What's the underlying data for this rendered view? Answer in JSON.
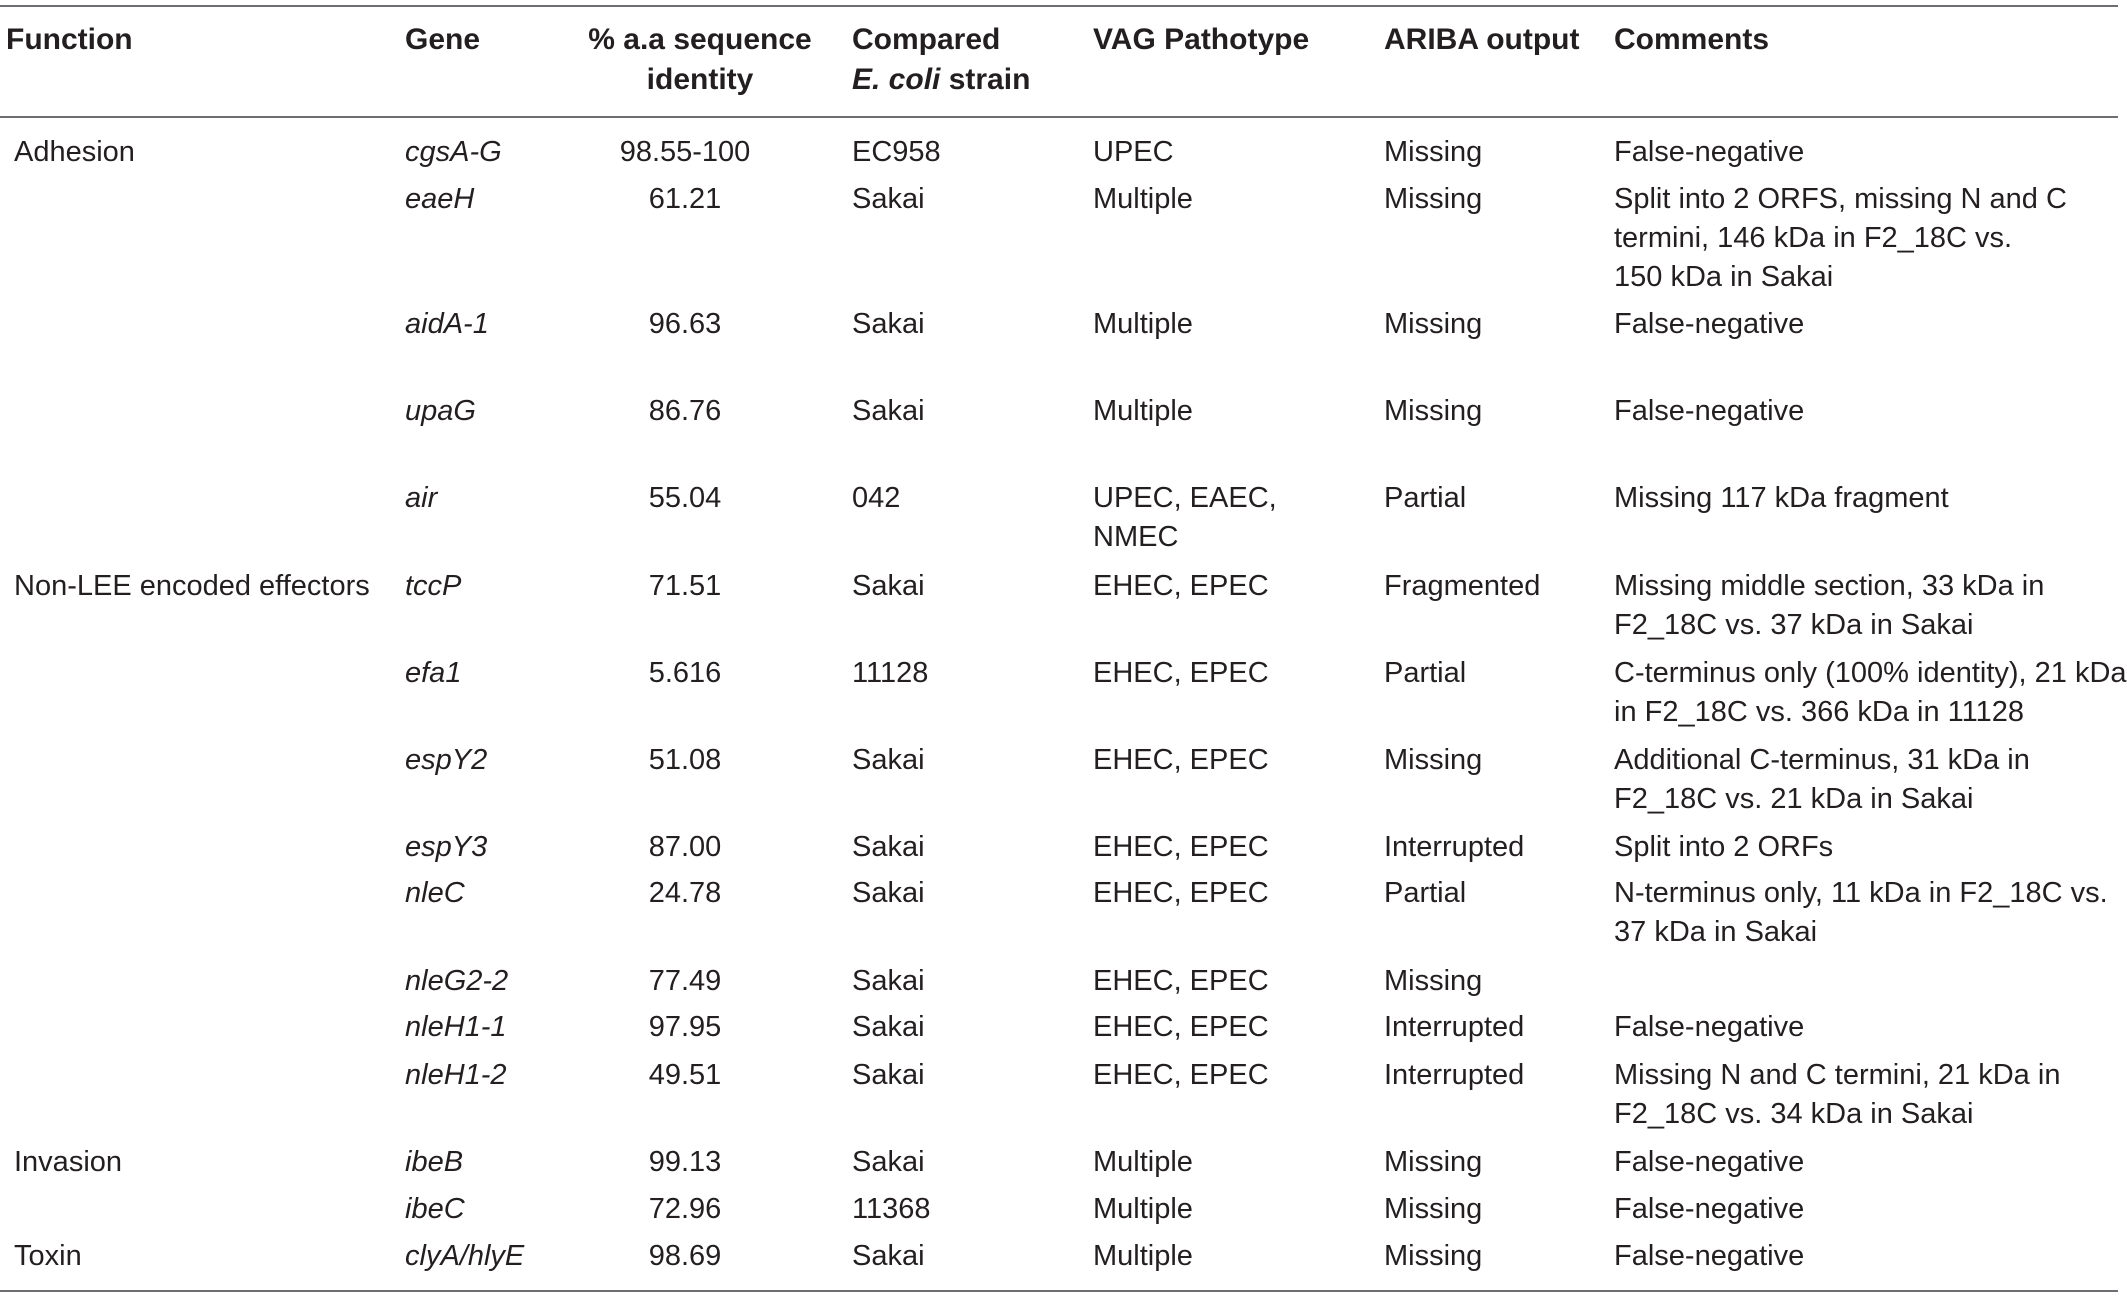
{
  "table": {
    "headers": {
      "function": "Function",
      "gene": "Gene",
      "identity_line1": "% a.a sequence",
      "identity_line2": "identity",
      "strain_line1": "Compared",
      "strain_line2_italic": "E. coli",
      "strain_line2_rest": " strain",
      "pathotype": "VAG Pathotype",
      "ariba": "ARIBA output",
      "comments": "Comments"
    },
    "rows": [
      {
        "function": "Adhesion",
        "gene": "cgsA-G",
        "identity": "98.55-100",
        "strain": "EC958",
        "pathotype": [
          "UPEC"
        ],
        "ariba": "Missing",
        "comments": [
          "False-negative"
        ]
      },
      {
        "function": "",
        "gene": "eaeH",
        "identity": "61.21",
        "strain": "Sakai",
        "pathotype": [
          "Multiple"
        ],
        "ariba": "Missing",
        "comments": [
          "Split into 2 ORFS, missing N and C",
          "termini, 146 kDa in F2_18C vs.",
          "150 kDa in Sakai"
        ]
      },
      {
        "function": "",
        "gene": "aidA-1",
        "identity": "96.63",
        "strain": "Sakai",
        "pathotype": [
          "Multiple"
        ],
        "ariba": "Missing",
        "comments": [
          "False-negative"
        ]
      },
      {
        "function": "",
        "gene": "upaG",
        "identity": "86.76",
        "strain": "Sakai",
        "pathotype": [
          "Multiple"
        ],
        "ariba": "Missing",
        "comments": [
          "False-negative"
        ]
      },
      {
        "function": "",
        "gene": "air",
        "identity": "55.04",
        "strain": "042",
        "pathotype": [
          "UPEC, EAEC,",
          "NMEC"
        ],
        "ariba": "Partial",
        "comments": [
          "Missing 117 kDa fragment"
        ]
      },
      {
        "function": "Non-LEE encoded effectors",
        "gene": "tccP",
        "identity": "71.51",
        "strain": "Sakai",
        "pathotype": [
          "EHEC, EPEC"
        ],
        "ariba": "Fragmented",
        "comments": [
          "Missing middle section, 33 kDa in",
          "F2_18C vs. 37 kDa in Sakai"
        ]
      },
      {
        "function": "",
        "gene": "efa1",
        "identity": "5.616",
        "strain": "11128",
        "pathotype": [
          "EHEC, EPEC"
        ],
        "ariba": "Partial",
        "comments": [
          "C-terminus only (100% identity), 21 kDa",
          "in F2_18C vs. 366 kDa in 11128"
        ]
      },
      {
        "function": "",
        "gene": "espY2",
        "identity": "51.08",
        "strain": "Sakai",
        "pathotype": [
          "EHEC, EPEC"
        ],
        "ariba": "Missing",
        "comments": [
          "Additional C-terminus, 31 kDa in",
          "F2_18C vs. 21 kDa in Sakai"
        ]
      },
      {
        "function": "",
        "gene": "espY3",
        "identity": "87.00",
        "strain": "Sakai",
        "pathotype": [
          "EHEC, EPEC"
        ],
        "ariba": "Interrupted",
        "comments": [
          "Split into 2 ORFs"
        ]
      },
      {
        "function": "",
        "gene": "nleC",
        "identity": "24.78",
        "strain": "Sakai",
        "pathotype": [
          "EHEC, EPEC"
        ],
        "ariba": "Partial",
        "comments": [
          "N-terminus only, 11 kDa in F2_18C vs.",
          "37 kDa in Sakai"
        ]
      },
      {
        "function": "",
        "gene": "nleG2-2",
        "identity": "77.49",
        "strain": "Sakai",
        "pathotype": [
          "EHEC, EPEC"
        ],
        "ariba": "Missing",
        "comments": []
      },
      {
        "function": "",
        "gene": "nleH1-1",
        "identity": "97.95",
        "strain": "Sakai",
        "pathotype": [
          "EHEC, EPEC"
        ],
        "ariba": "Interrupted",
        "comments": [
          "False-negative"
        ]
      },
      {
        "function": "",
        "gene": "nleH1-2",
        "identity": "49.51",
        "strain": "Sakai",
        "pathotype": [
          "EHEC, EPEC"
        ],
        "ariba": "Interrupted",
        "comments": [
          "Missing N and C termini, 21 kDa in",
          "F2_18C vs. 34 kDa in Sakai"
        ]
      },
      {
        "function": "Invasion",
        "gene": "ibeB",
        "identity": "99.13",
        "strain": "Sakai",
        "pathotype": [
          "Multiple"
        ],
        "ariba": "Missing",
        "comments": [
          "False-negative"
        ]
      },
      {
        "function": "",
        "gene": "ibeC",
        "identity": "72.96",
        "strain": "11368",
        "pathotype": [
          "Multiple"
        ],
        "ariba": "Missing",
        "comments": [
          "False-negative"
        ]
      },
      {
        "function": "Toxin",
        "gene": "clyA/hlyE",
        "identity": "98.69",
        "strain": "Sakai",
        "pathotype": [
          "Multiple"
        ],
        "ariba": "Missing",
        "comments": [
          "False-negative"
        ]
      }
    ]
  }
}
